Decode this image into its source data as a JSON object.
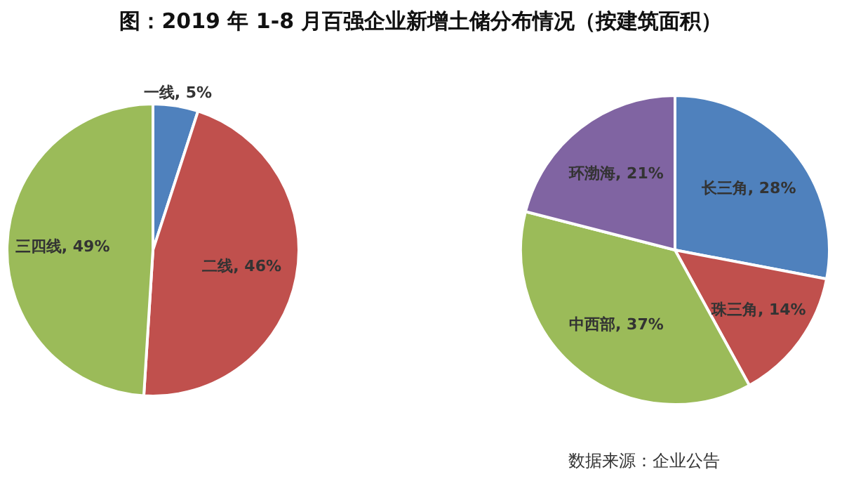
{
  "chart_data": [
    {
      "type": "pie",
      "title": "图：2019 年 1-8 月百强企业新增土储分布情况（按建筑面积）",
      "categories": [
        "一线",
        "二线",
        "三四线"
      ],
      "values": [
        5,
        46,
        49
      ],
      "colors": [
        "#4f81bd",
        "#c0504d",
        "#9bbb59"
      ],
      "value_labels": [
        "5%",
        "46%",
        "49%"
      ],
      "legend": false
    },
    {
      "type": "pie",
      "categories": [
        "长三角",
        "珠三角",
        "中西部",
        "环渤海"
      ],
      "values": [
        28,
        14,
        37,
        21
      ],
      "colors": [
        "#4f81bd",
        "#c0504d",
        "#9bbb59",
        "#8064a2"
      ],
      "value_labels": [
        "28%",
        "14%",
        "37%",
        "21%"
      ],
      "legend": false,
      "annotations": [
        "数据来源：企业公告"
      ]
    }
  ]
}
